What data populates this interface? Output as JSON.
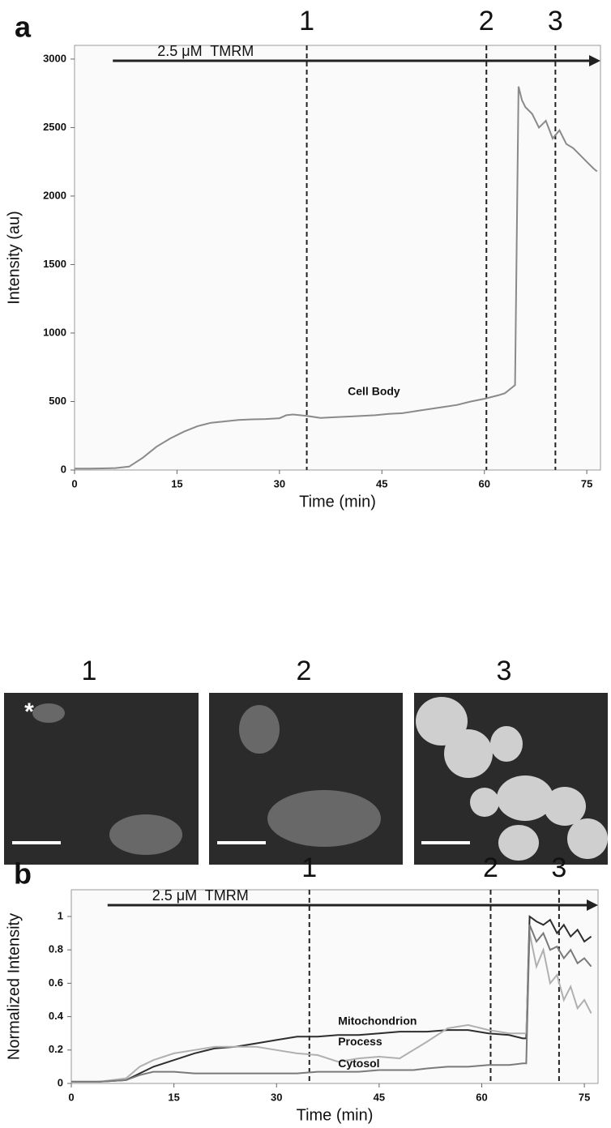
{
  "chart_data": [
    {
      "type": "line",
      "panel": "a",
      "xlabel": "Time (min)",
      "ylabel": "Intensity (au)",
      "xlim": [
        0,
        77
      ],
      "ylim": [
        0,
        3100
      ],
      "xticks": [
        0,
        15,
        30,
        45,
        60,
        75
      ],
      "yticks": [
        0,
        500,
        1000,
        1500,
        2000,
        2500,
        3000
      ],
      "markers": [
        {
          "x": 34,
          "label": "1"
        },
        {
          "x": 60.3,
          "label": "2"
        },
        {
          "x": 70.4,
          "label": "3"
        }
      ],
      "arrow": {
        "x": 5.6,
        "label": "2.5 μM  TMRM"
      },
      "x": [
        0,
        2,
        4,
        6,
        8,
        10,
        12,
        14,
        16,
        18,
        20,
        22,
        24,
        26,
        28,
        30,
        31,
        32,
        34,
        36,
        38,
        40,
        42,
        44,
        46,
        48,
        50,
        52,
        54,
        56,
        58,
        60,
        62,
        63,
        64,
        64.5,
        65,
        65.5,
        66,
        67,
        68,
        69,
        70,
        71,
        72,
        73,
        74,
        75,
        76,
        76.5
      ],
      "series": [
        {
          "name": "Cell Body",
          "color": "#8a8a8a",
          "values": [
            10,
            10,
            12,
            14,
            25,
            90,
            170,
            230,
            280,
            320,
            345,
            355,
            365,
            370,
            372,
            378,
            400,
            405,
            395,
            380,
            385,
            390,
            395,
            400,
            410,
            415,
            430,
            445,
            460,
            475,
            500,
            520,
            545,
            560,
            600,
            620,
            2800,
            2700,
            2650,
            2600,
            2500,
            2550,
            2420,
            2480,
            2380,
            2350,
            2300,
            2250,
            2200,
            2180
          ]
        }
      ]
    },
    {
      "type": "line",
      "panel": "b",
      "xlabel": "Time (min)",
      "ylabel": "Normalized Intensity",
      "xlim": [
        0,
        77
      ],
      "ylim": [
        0,
        1.16
      ],
      "xticks": [
        0,
        15,
        30,
        45,
        60,
        75
      ],
      "yticks": [
        0,
        0.2,
        0.4,
        0.6,
        0.8,
        1
      ],
      "markers": [
        {
          "x": 34.8,
          "label": "1"
        },
        {
          "x": 61.3,
          "label": "2"
        },
        {
          "x": 71.3,
          "label": "3"
        }
      ],
      "arrow": {
        "x": 5.3,
        "label": "2.5 μM  TMRM"
      },
      "x": [
        0,
        4,
        8,
        10,
        12,
        15,
        18,
        21,
        24,
        27,
        30,
        33,
        36,
        39,
        42,
        45,
        48,
        50,
        52,
        55,
        58,
        61,
        64,
        66,
        66.5,
        67,
        68,
        69,
        70,
        71,
        72,
        73,
        74,
        75,
        76
      ],
      "series": [
        {
          "name": "Mitochondrion",
          "color": "#2e2e2e",
          "values": [
            0.01,
            0.01,
            0.02,
            0.06,
            0.1,
            0.14,
            0.18,
            0.21,
            0.22,
            0.24,
            0.26,
            0.28,
            0.28,
            0.29,
            0.29,
            0.3,
            0.31,
            0.31,
            0.31,
            0.32,
            0.32,
            0.3,
            0.29,
            0.27,
            0.27,
            1.0,
            0.97,
            0.95,
            0.98,
            0.9,
            0.95,
            0.88,
            0.92,
            0.85,
            0.88
          ]
        },
        {
          "name": "Process",
          "color": "#b0b0b0",
          "values": [
            0.01,
            0.01,
            0.03,
            0.1,
            0.14,
            0.18,
            0.2,
            0.22,
            0.22,
            0.22,
            0.2,
            0.18,
            0.17,
            0.13,
            0.15,
            0.16,
            0.15,
            0.2,
            0.25,
            0.33,
            0.35,
            0.32,
            0.3,
            0.3,
            0.3,
            0.9,
            0.7,
            0.8,
            0.6,
            0.65,
            0.5,
            0.58,
            0.45,
            0.5,
            0.42
          ]
        },
        {
          "name": "Cytosol",
          "color": "#7a7a7a",
          "values": [
            0.01,
            0.01,
            0.02,
            0.05,
            0.07,
            0.07,
            0.06,
            0.06,
            0.06,
            0.06,
            0.06,
            0.06,
            0.07,
            0.07,
            0.07,
            0.08,
            0.08,
            0.08,
            0.09,
            0.1,
            0.1,
            0.11,
            0.11,
            0.12,
            0.12,
            0.95,
            0.85,
            0.9,
            0.8,
            0.82,
            0.75,
            0.8,
            0.72,
            0.75,
            0.7
          ]
        }
      ]
    }
  ],
  "images": {
    "labels": [
      "1",
      "2",
      "3"
    ],
    "marker": "*"
  }
}
